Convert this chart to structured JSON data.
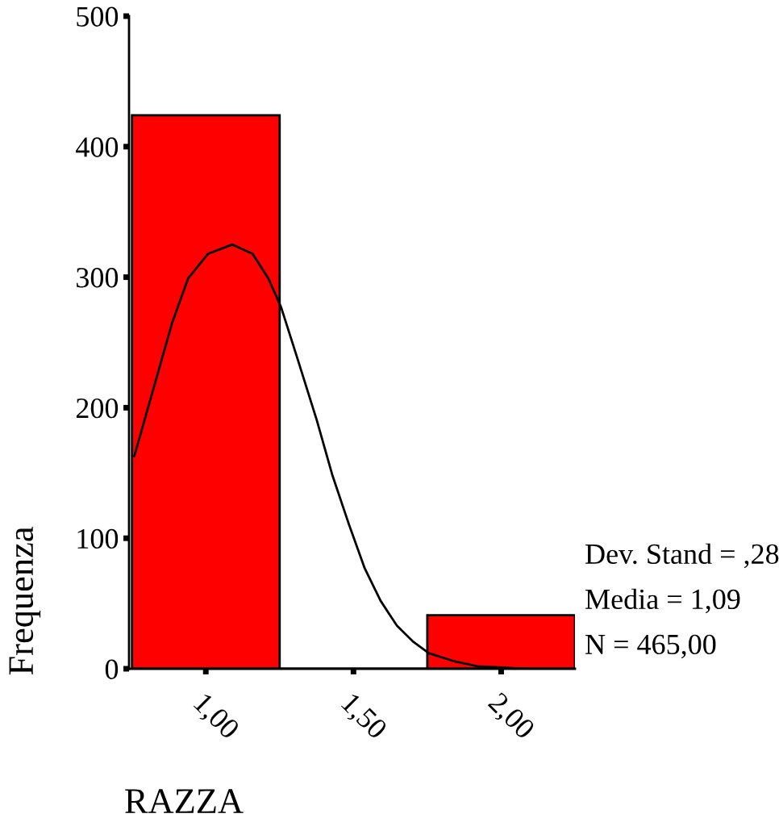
{
  "chart_data": {
    "type": "histogram",
    "xlabel": "RAZZA",
    "ylabel": "Frequenza",
    "bins": [
      0.75,
      1.25,
      1.75,
      2.25
    ],
    "series": [
      {
        "type": "histogram",
        "color": "#ff0000",
        "values": [
          424,
          0,
          41
        ]
      },
      {
        "type": "line",
        "color": "#000000",
        "x": [
          0.758,
          0.832,
          0.886,
          0.94,
          1.008,
          1.09,
          1.158,
          1.212,
          1.255,
          1.307,
          1.375,
          1.429,
          1.484,
          1.538,
          1.592,
          1.647,
          1.701,
          1.755,
          1.837,
          1.918,
          2.0,
          2.082
        ],
        "values": [
          163,
          222,
          265,
          299,
          318,
          325,
          318,
          299,
          277,
          240,
          191,
          148,
          111,
          77,
          52,
          33,
          21,
          12,
          6,
          2,
          1,
          0
        ]
      }
    ],
    "xlim": [
      0.74,
      2.25
    ],
    "ylim": [
      0,
      500
    ],
    "xticks": [
      {
        "value": 1,
        "label": "1,00"
      },
      {
        "value": 1.5,
        "label": "1,50"
      },
      {
        "value": 2,
        "label": "2,00"
      }
    ],
    "yticks": [
      0,
      100,
      200,
      300,
      400,
      500
    ],
    "annotations": [
      "Dev. Stand = ,28",
      "Media = 1,09",
      "N = 465,00"
    ]
  }
}
